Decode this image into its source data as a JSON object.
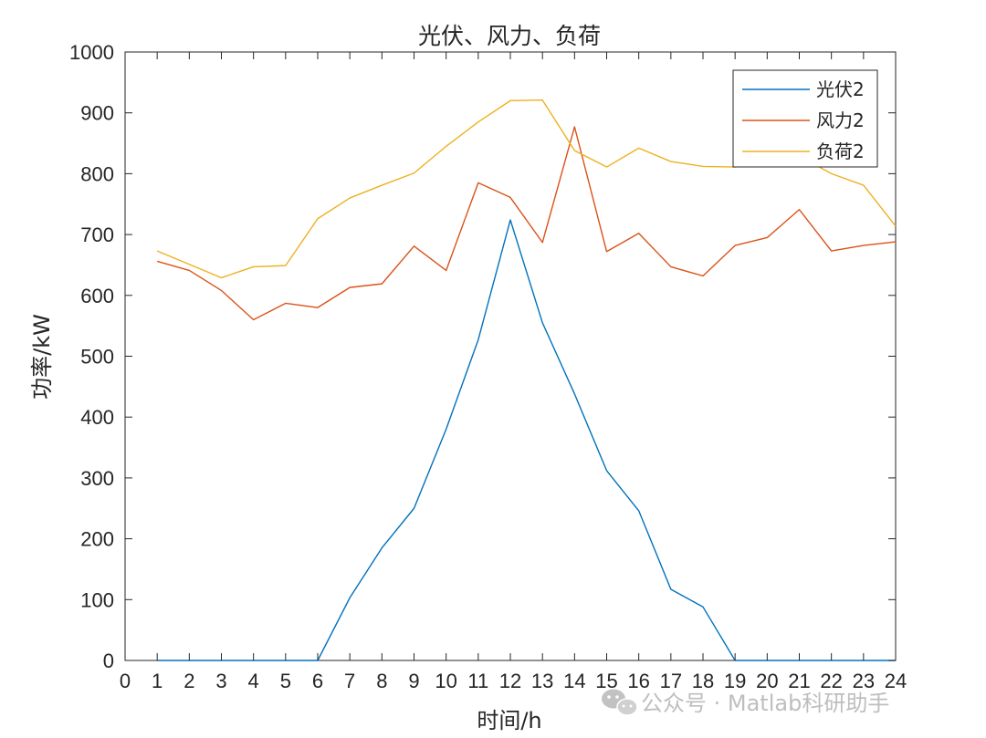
{
  "chart_data": {
    "type": "line",
    "title": "光伏、风力、负荷",
    "xlabel": "时间/h",
    "ylabel": "功率/kW",
    "xlim": [
      0,
      24
    ],
    "ylim": [
      0,
      1000
    ],
    "x": [
      1,
      2,
      3,
      4,
      5,
      6,
      7,
      8,
      9,
      10,
      11,
      12,
      13,
      14,
      15,
      16,
      17,
      18,
      19,
      20,
      21,
      22,
      23,
      24
    ],
    "xticks": [
      "0",
      "1",
      "2",
      "3",
      "4",
      "5",
      "6",
      "7",
      "8",
      "9",
      "10",
      "11",
      "12",
      "13",
      "14",
      "15",
      "16",
      "17",
      "18",
      "19",
      "20",
      "21",
      "22",
      "23",
      "24"
    ],
    "yticks": [
      "0",
      "100",
      "200",
      "300",
      "400",
      "500",
      "600",
      "700",
      "800",
      "900",
      "1000"
    ],
    "legend_position": "top-right",
    "grid": false,
    "series": [
      {
        "name": "光伏2",
        "color": "#0072BD",
        "values": [
          0,
          0,
          0,
          0,
          0,
          0,
          103,
          185,
          250,
          380,
          527,
          724,
          555,
          438,
          312,
          246,
          117,
          88,
          0,
          0,
          0,
          0,
          0,
          0
        ]
      },
      {
        "name": "风力2",
        "color": "#D95319",
        "values": [
          656,
          641,
          608,
          560,
          587,
          580,
          613,
          619,
          681,
          641,
          785,
          761,
          687,
          877,
          672,
          702,
          647,
          632,
          682,
          695,
          741,
          673,
          682,
          688
        ]
      },
      {
        "name": "负荷2",
        "color": "#EDB120",
        "values": [
          673,
          651,
          629,
          647,
          649,
          726,
          760,
          781,
          801,
          845,
          885,
          920,
          921,
          838,
          811,
          842,
          820,
          812,
          811,
          830,
          829,
          800,
          781,
          714
        ]
      }
    ]
  },
  "watermark": {
    "icon": "wechat-icon",
    "text": "公众号 · Matlab科研助手"
  }
}
